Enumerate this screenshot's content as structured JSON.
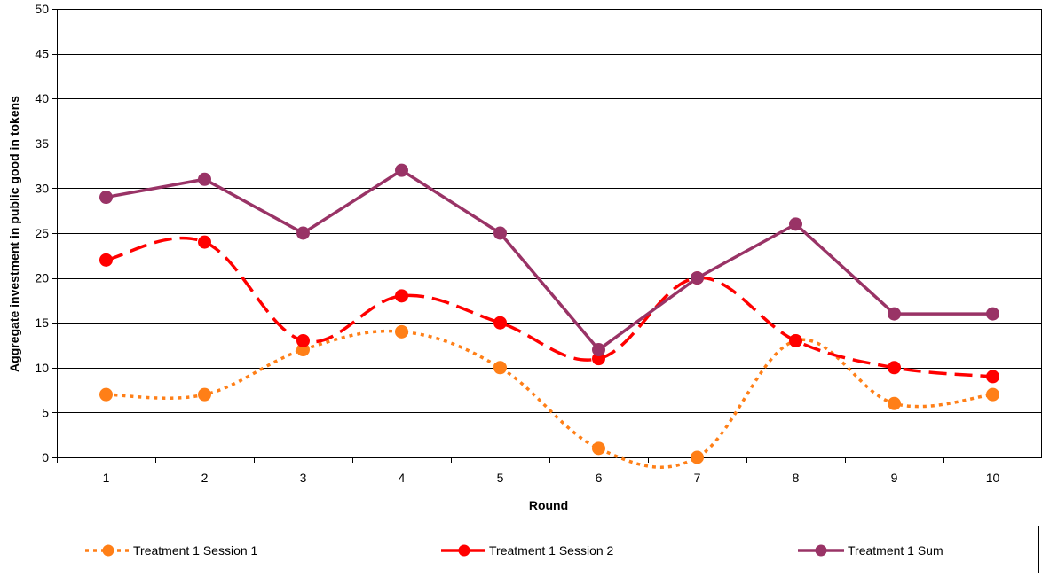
{
  "chart_data": {
    "type": "line",
    "title": "",
    "xlabel": "Round",
    "ylabel": "Aggregate investment in public good in tokens",
    "categories": [
      "1",
      "2",
      "3",
      "4",
      "5",
      "6",
      "7",
      "8",
      "9",
      "10"
    ],
    "ylim": [
      0,
      50
    ],
    "yticks": [
      "0",
      "5",
      "10",
      "15",
      "20",
      "25",
      "30",
      "35",
      "40",
      "45",
      "50"
    ],
    "grid": "horizontal",
    "legend_position": "bottom",
    "series": [
      {
        "name": "Treatment 1 Session 1",
        "values": [
          7,
          7,
          12,
          14,
          10,
          1,
          0,
          13,
          6,
          7
        ],
        "color": "#FF7F17",
        "line_style": "dotted",
        "smooth": true
      },
      {
        "name": "Treatment 1 Session 2",
        "values": [
          22,
          24,
          13,
          18,
          15,
          11,
          20,
          13,
          10,
          9
        ],
        "color": "#FF0000",
        "line_style": "dashed",
        "smooth": true
      },
      {
        "name": "Treatment 1 Sum",
        "values": [
          29,
          31,
          25,
          32,
          25,
          12,
          20,
          26,
          16,
          16
        ],
        "color": "#993366",
        "line_style": "solid",
        "smooth": false
      }
    ]
  }
}
